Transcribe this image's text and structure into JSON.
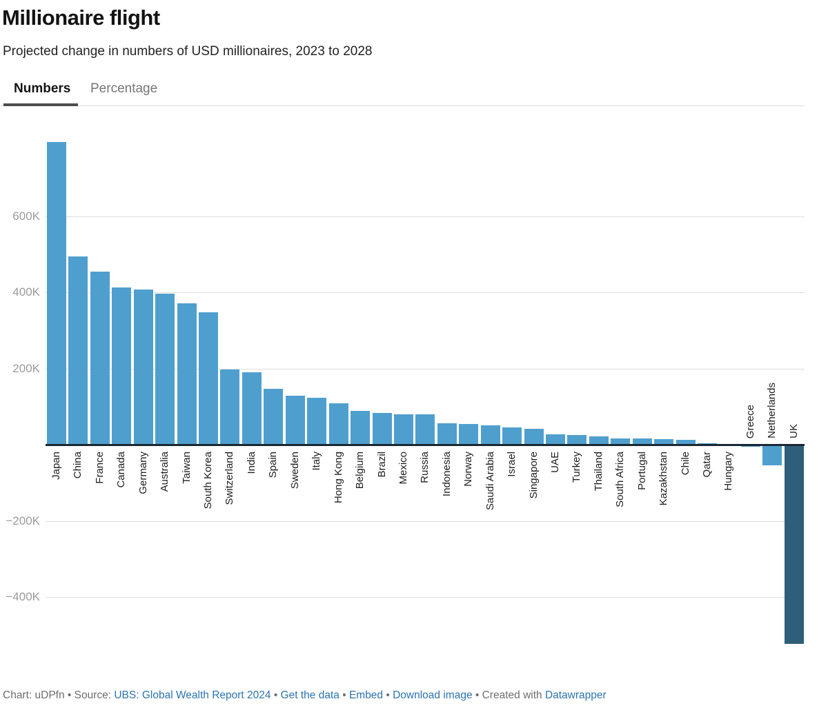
{
  "header": {
    "title": "Millionaire flight",
    "subtitle": "Projected change in numbers of USD millionaires, 2023 to 2028"
  },
  "tabs": [
    {
      "label": "Numbers",
      "active": true
    },
    {
      "label": "Percentage",
      "active": false
    }
  ],
  "chart_data": {
    "type": "bar",
    "title": "Millionaire flight",
    "subtitle": "Projected change in numbers of USD millionaires, 2023 to 2028",
    "categories": [
      "Japan",
      "China",
      "France",
      "Canada",
      "Germany",
      "Australia",
      "Taiwan",
      "South Korea",
      "Switzerland",
      "India",
      "Spain",
      "Sweden",
      "Italy",
      "Hong Kong",
      "Belgium",
      "Brazil",
      "Mexico",
      "Russia",
      "Indonesia",
      "Norway",
      "Saudi Arabia",
      "Israel",
      "Singapore",
      "UAE",
      "Turkey",
      "Thailand",
      "South Africa",
      "Portugal",
      "Kazakhstan",
      "Chile",
      "Qatar",
      "Hungary",
      "Greece",
      "Netherlands",
      "UK"
    ],
    "values": [
      795000,
      495000,
      455000,
      412000,
      408000,
      397000,
      371000,
      347000,
      198000,
      191000,
      147000,
      128000,
      123000,
      108000,
      89000,
      83000,
      80000,
      79000,
      57000,
      54000,
      50000,
      45000,
      41000,
      28000,
      25000,
      21000,
      17000,
      16000,
      15000,
      12000,
      3000,
      2000,
      -1000,
      -52000,
      -521000
    ],
    "xlabel": "",
    "ylabel": "",
    "ylim": [
      -550000,
      800000
    ],
    "grid": true,
    "legend": "none",
    "yticks": [
      {
        "v": 600000,
        "label": "600K"
      },
      {
        "v": 400000,
        "label": "400K"
      },
      {
        "v": 200000,
        "label": "200K"
      },
      {
        "v": 0,
        "label": ""
      },
      {
        "v": -200000,
        "label": "−200K"
      },
      {
        "v": -400000,
        "label": "−400K"
      }
    ],
    "bar_color": "#4f9fce",
    "highlight_color": "#2e5f7a",
    "highlighted": [
      "UK"
    ],
    "axis_color": "#1a2733"
  },
  "footer": {
    "parts": [
      {
        "text": "Chart: uDPfn • Source: ",
        "link": false,
        "name": "footer-credit-text"
      },
      {
        "text": "UBS: Global Wealth Report 2024",
        "link": true,
        "name": "source-link"
      },
      {
        "text": " • ",
        "link": false,
        "name": "footer-separator"
      },
      {
        "text": "Get the data",
        "link": true,
        "name": "get-the-data-link"
      },
      {
        "text": " • ",
        "link": false,
        "name": "footer-separator"
      },
      {
        "text": "Embed",
        "link": true,
        "name": "embed-link"
      },
      {
        "text": "  • ",
        "link": false,
        "name": "footer-separator"
      },
      {
        "text": "Download image",
        "link": true,
        "name": "download-image-link"
      },
      {
        "text": " • Created with ",
        "link": false,
        "name": "footer-created-with-text"
      },
      {
        "text": "Datawrapper",
        "link": true,
        "name": "datawrapper-link"
      }
    ]
  }
}
